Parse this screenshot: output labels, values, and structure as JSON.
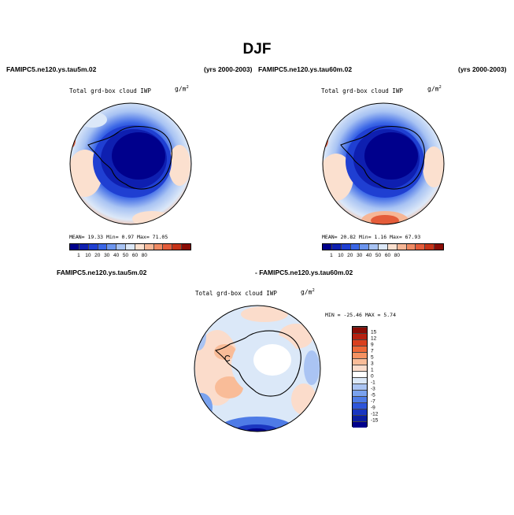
{
  "season": "DJF",
  "panel1": {
    "case": "FAMIPC5.ne120.ys.tau5m.02",
    "years": "(yrs 2000-2003)",
    "title": "Total grd-box cloud IWP",
    "units": "g/m",
    "units_exp": "2",
    "stats": "MEAN=  19.33  Min=   0.97  Max=  71.05",
    "mean": 19.33,
    "min": 0.97,
    "max": 71.05
  },
  "panel2": {
    "case": "FAMIPC5.ne120.ys.tau60m.02",
    "years": "(yrs 2000-2003)",
    "title": "Total grd-box cloud IWP",
    "units": "g/m",
    "units_exp": "2",
    "stats": "MEAN=  20.82  Min=   1.16  Max=  67.93",
    "mean": 20.82,
    "min": 1.16,
    "max": 67.93
  },
  "panel3": {
    "case_left": "FAMIPC5.ne120.ys.tau5m.02",
    "case_right": "- FAMIPC5.ne120.ys.tau60m.02",
    "title": "Total grd-box cloud IWP",
    "units": "g/m",
    "units_exp": "2",
    "stats": "MIN = -25.46  MAX =   5.74",
    "min": -25.46,
    "max": 5.74
  },
  "colorbar_abs": {
    "labels": [
      "1",
      "10",
      "20",
      "30",
      "40",
      "50",
      "60",
      "80"
    ],
    "colors": [
      "#00008c",
      "#0e1fb0",
      "#1f3fd2",
      "#3a66e6",
      "#6c95ee",
      "#a8c3f3",
      "#dce8f8",
      "#fbe0cf",
      "#f6b696",
      "#f08a63",
      "#e45c3a",
      "#c63318",
      "#8a0c05"
    ]
  },
  "colorbar_diff": {
    "labels": [
      "15",
      "12",
      "9",
      "7",
      "5",
      "3",
      "1",
      "0",
      "-1",
      "-3",
      "-5",
      "-7",
      "-9",
      "-12",
      "-15"
    ],
    "colors": [
      "#8a0c05",
      "#b62010",
      "#d9401f",
      "#ee6838",
      "#f59262",
      "#f9bc98",
      "#fbdccb",
      "#ffffff",
      "#dbe8f8",
      "#aac4f3",
      "#7aa2ee",
      "#4e7be6",
      "#2e55da",
      "#1a36c0",
      "#0c1ea0",
      "#00008c"
    ]
  }
}
